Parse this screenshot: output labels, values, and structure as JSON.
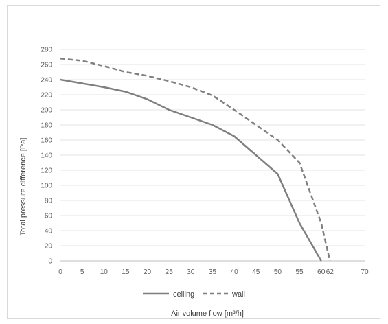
{
  "chart_data": {
    "type": "line",
    "xlabel": "Air volume flow [m³/h]",
    "ylabel": "Total pressure difference [Pa]",
    "xlim": [
      0,
      70
    ],
    "ylim": [
      0,
      280
    ],
    "x_ticks": [
      "0",
      "5",
      "10",
      "15",
      "20",
      "25",
      "30",
      "35",
      "40",
      "45",
      "50",
      "55",
      "60",
      "62",
      "70"
    ],
    "y_ticks": [
      "0",
      "20",
      "40",
      "60",
      "80",
      "100",
      "120",
      "140",
      "160",
      "180",
      "200",
      "220",
      "240",
      "260",
      "280"
    ],
    "grid": true,
    "legend_position": "bottom",
    "series": [
      {
        "name": "ceiling",
        "style": "solid",
        "color": "#7f7f7f",
        "x": [
          0,
          5,
          10,
          15,
          20,
          25,
          30,
          35,
          40,
          45,
          50,
          55,
          60
        ],
        "y": [
          240,
          235,
          230,
          224,
          214,
          200,
          190,
          180,
          165,
          140,
          115,
          50,
          0
        ]
      },
      {
        "name": "wall",
        "style": "dashed",
        "color": "#7f7f7f",
        "x": [
          0,
          5,
          10,
          15,
          20,
          25,
          30,
          35,
          40,
          45,
          50,
          55,
          60,
          62
        ],
        "y": [
          268,
          265,
          258,
          250,
          245,
          238,
          230,
          219,
          200,
          180,
          160,
          130,
          50,
          0
        ]
      }
    ]
  }
}
